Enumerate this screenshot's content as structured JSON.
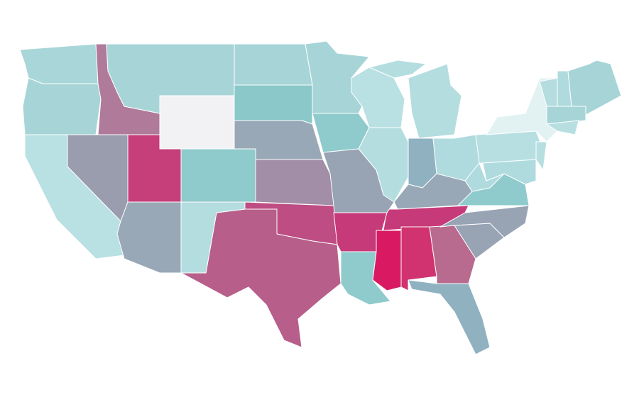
{
  "map": {
    "fills": [
      "#a9d6d8",
      "#a7d5d7",
      "#b07a9a",
      "#a7d5d7",
      "#f2f2f4",
      "#a7d5d7",
      "#8bc8c9",
      "#98a8b6",
      "#a7d5d7",
      "#8fcacc",
      "#b9e0e2",
      "#b4dde0",
      "#b4dde0",
      "#b4dde0",
      "#8fb1c0",
      "#b0dbde",
      "#98a8b6",
      "#c73a79",
      "#98a4b4",
      "#a28ea6",
      "#bd4d83",
      "#b75f8a",
      "#c73a79",
      "#8fcacc",
      "#d91a62",
      "#d0336f",
      "#b96a8f",
      "#8fb1c0",
      "#98a4b4",
      "#98a4b4",
      "#8fcacc",
      "#b0dbde",
      "#b7dfe1",
      "#e2f2f3",
      "#b7dfe1",
      "#b0dbde",
      "#b5dde0",
      "#b0dbde",
      "#a7d5d7",
      "#a7d5d7",
      "#b7dfe1",
      "#9a9dae",
      "#b9e0e2",
      "#c63e7a",
      "#98a8b6",
      "#8fcacc",
      "#b4dde0"
    ]
  }
}
